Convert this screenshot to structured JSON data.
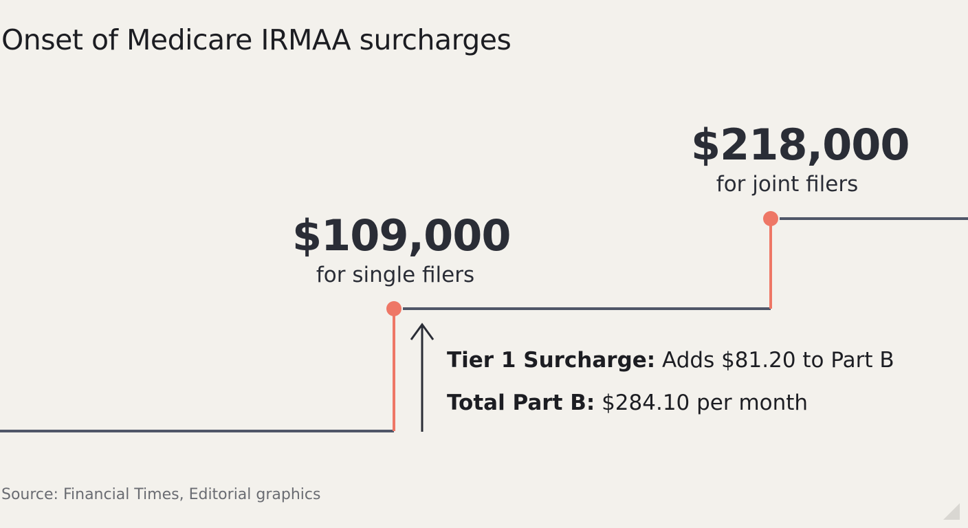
{
  "title": "Onset of Medicare IRMAA surcharges",
  "thresholds": {
    "single": {
      "amount": "$109,000",
      "label": "for single filers"
    },
    "joint": {
      "amount": "$218,000",
      "label": "for joint filers"
    }
  },
  "details": {
    "tier_label": "Tier 1 Surcharge:",
    "tier_text": " Adds $81.20 to Part B",
    "total_label": "Total Part B:",
    "total_text": " $284.10 per month"
  },
  "source": "Source: Financial Times, Editorial graphics",
  "colors": {
    "background": "#F3F1EC",
    "step_line": "#4F5668",
    "riser": "#EE7766",
    "marker": "#EE7766",
    "text": "#2A2D36"
  },
  "icons": [
    "up-arrow-icon",
    "corner-fold-icon"
  ]
}
